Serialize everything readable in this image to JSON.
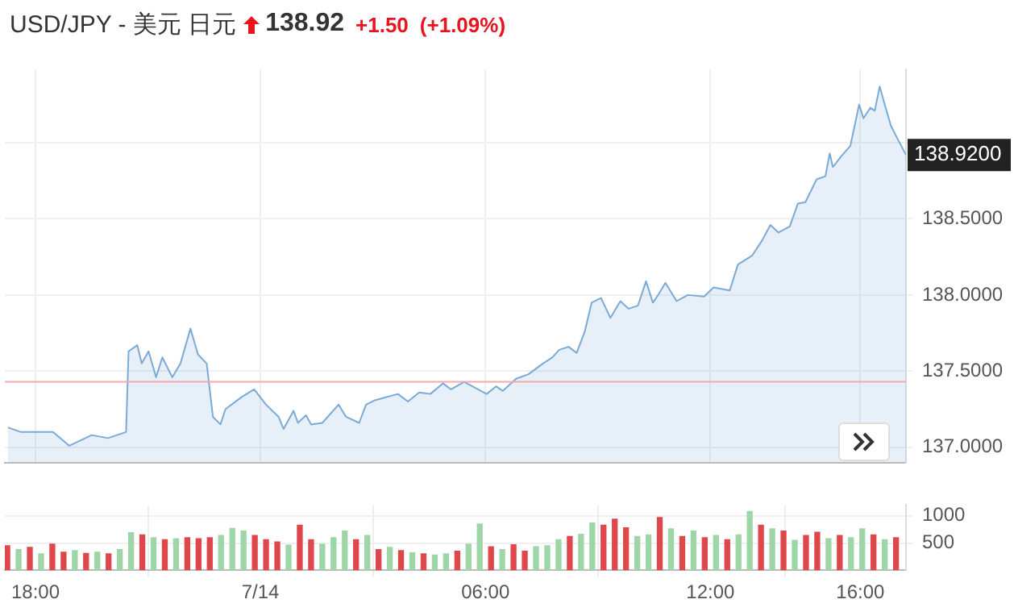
{
  "chart_data": [
    {
      "type": "area",
      "title": "USD/JPY - 美元 日元",
      "annotations": [
        "138.92",
        "+1.50",
        "(+1.09%)",
        {
          "text": "138.9200",
          "x": "--07-14T17:13",
          "y": 138.92
        }
      ],
      "xlim": [
        "--07-13T17:11",
        "--07-14T17:13"
      ],
      "xticks": [
        {
          "value": "--07-13T18:00",
          "label": null
        },
        {
          "value": "--07-14T00:00",
          "label": null
        },
        {
          "value": "--07-14T06:00",
          "label": null
        },
        {
          "value": "--07-14T12:00",
          "label": null
        },
        {
          "value": "--07-14T16:00",
          "label": null
        }
      ],
      "ylim": [
        136.9,
        139.48
      ],
      "yticks": [
        {
          "value": 137,
          "label": "137.0000"
        },
        {
          "value": 137.5,
          "label": "137.5000"
        },
        {
          "value": 138,
          "label": "138.0000"
        },
        {
          "value": 138.5,
          "label": "138.5000"
        },
        {
          "value": 139,
          "label": null
        }
      ],
      "grid": true,
      "legend": false,
      "tick_labels": "y",
      "ref_lines": [
        {
          "axis": "y",
          "value": 137.43,
          "color": "#f4a9a9"
        }
      ],
      "series": [
        {
          "color": "#7aaad6",
          "x": [
            "--07-13T17:16",
            "--07-13T17:37",
            "--07-13T18:28",
            "--07-13T18:54",
            "--07-13T19:30",
            "--07-13T19:56",
            "--07-13T20:25",
            "--07-13T20:29",
            "--07-13T20:43",
            "--07-13T20:50",
            "--07-13T21:01",
            "--07-13T21:13",
            "--07-13T21:23",
            "--07-13T21:39",
            "--07-13T21:52",
            "--07-13T22:08",
            "--07-13T22:20",
            "--07-13T22:34",
            "--07-13T22:44",
            "--07-13T22:56",
            "--07-13T23:04",
            "--07-13T23:30",
            "--07-13T23:50",
            "--07-14T00:09",
            "--07-14T00:29",
            "--07-14T00:37",
            "--07-14T00:53",
            "--07-14T01:00",
            "--07-14T01:13",
            "--07-14T01:21",
            "--07-14T01:39",
            "--07-14T02:05",
            "--07-14T02:17",
            "--07-14T02:38",
            "--07-14T02:49",
            "--07-14T03:04",
            "--07-14T03:40",
            "--07-14T03:56",
            "--07-14T04:14",
            "--07-14T04:32",
            "--07-14T04:52",
            "--07-14T05:05",
            "--07-14T05:26",
            "--07-14T06:02",
            "--07-14T06:17",
            "--07-14T06:28",
            "--07-14T06:49",
            "--07-14T07:09",
            "--07-14T07:32",
            "--07-14T07:47",
            "--07-14T07:58",
            "--07-14T08:13",
            "--07-14T08:26",
            "--07-14T08:39",
            "--07-14T08:50",
            "--07-14T09:05",
            "--07-14T09:20",
            "--07-14T09:36",
            "--07-14T09:49",
            "--07-14T10:04",
            "--07-14T10:17",
            "--07-14T10:28",
            "--07-14T10:38",
            "--07-14T10:48",
            "--07-14T11:06",
            "--07-14T11:24",
            "--07-14T11:50",
            "--07-14T12:05",
            "--07-14T12:31",
            "--07-14T12:44",
            "--07-14T13:07",
            "--07-14T13:23",
            "--07-14T13:36",
            "--07-14T13:49",
            "--07-14T14:07",
            "--07-14T14:20",
            "--07-14T14:32",
            "--07-14T14:50",
            "--07-14T15:04",
            "--07-14T15:11",
            "--07-14T15:16",
            "--07-14T15:29",
            "--07-14T15:44",
            "--07-14T15:58",
            "--07-14T16:05",
            "--07-14T16:16",
            "--07-14T16:23",
            "--07-14T16:31",
            "--07-14T16:39",
            "--07-14T16:49",
            "--07-14T16:59",
            "--07-14T17:13"
          ],
          "values": [
            137.13,
            137.1,
            137.1,
            137.01,
            137.08,
            137.06,
            137.1,
            137.63,
            137.67,
            137.55,
            137.63,
            137.46,
            137.59,
            137.46,
            137.55,
            137.78,
            137.61,
            137.55,
            137.2,
            137.15,
            137.25,
            137.33,
            137.38,
            137.28,
            137.2,
            137.12,
            137.24,
            137.16,
            137.21,
            137.15,
            137.16,
            137.28,
            137.2,
            137.16,
            137.28,
            137.31,
            137.35,
            137.3,
            137.36,
            137.35,
            137.42,
            137.38,
            137.43,
            137.35,
            137.4,
            137.37,
            137.45,
            137.48,
            137.55,
            137.59,
            137.64,
            137.66,
            137.62,
            137.76,
            137.95,
            137.98,
            137.85,
            137.96,
            137.91,
            137.93,
            138.09,
            137.95,
            138.01,
            138.08,
            137.96,
            138.0,
            137.99,
            138.05,
            138.03,
            138.2,
            138.26,
            138.36,
            138.46,
            138.41,
            138.45,
            138.6,
            138.61,
            138.76,
            138.78,
            138.93,
            138.84,
            138.91,
            138.98,
            139.25,
            139.16,
            139.23,
            139.21,
            139.37,
            139.25,
            139.11,
            139.03,
            138.92
          ]
        }
      ]
    },
    {
      "type": "bar",
      "xlim": [
        "--07-13T17:11",
        "--07-14T17:13"
      ],
      "xticks": [
        {
          "value": "--07-13T18:00",
          "label": "18:00"
        },
        {
          "value": "--07-14T00:00",
          "label": "7/14"
        },
        {
          "value": "--07-14T06:00",
          "label": "06:00"
        },
        {
          "value": "--07-14T12:00",
          "label": "12:00"
        },
        {
          "value": "--07-14T16:00",
          "label": "16:00"
        }
      ],
      "ylim": [
        0,
        1200
      ],
      "yticks": [
        500,
        1000
      ],
      "grid": true,
      "legend": false,
      "series": [
        {
          "x": [
            "--07-13T17:15",
            "--07-13T17:33",
            "--07-13T17:51",
            "--07-13T18:09",
            "--07-13T18:27",
            "--07-13T18:45",
            "--07-13T19:03",
            "--07-13T19:21",
            "--07-13T19:39",
            "--07-13T19:57",
            "--07-13T20:15",
            "--07-13T20:33",
            "--07-13T20:51",
            "--07-13T21:09",
            "--07-13T21:27",
            "--07-13T21:45",
            "--07-13T22:03",
            "--07-13T22:21",
            "--07-13T22:39",
            "--07-13T22:57",
            "--07-13T23:15",
            "--07-13T23:33",
            "--07-13T23:51",
            "--07-14T00:09",
            "--07-14T00:27",
            "--07-14T00:45",
            "--07-14T01:03",
            "--07-14T01:21",
            "--07-14T01:39",
            "--07-14T01:57",
            "--07-14T02:15",
            "--07-14T02:33",
            "--07-14T02:51",
            "--07-14T03:09",
            "--07-14T03:27",
            "--07-14T03:45",
            "--07-14T04:03",
            "--07-14T04:21",
            "--07-14T04:39",
            "--07-14T04:57",
            "--07-14T05:15",
            "--07-14T05:33",
            "--07-14T05:51",
            "--07-14T06:09",
            "--07-14T06:27",
            "--07-14T06:45",
            "--07-14T07:03",
            "--07-14T07:21",
            "--07-14T07:39",
            "--07-14T07:57",
            "--07-14T08:15",
            "--07-14T08:33",
            "--07-14T08:51",
            "--07-14T09:09",
            "--07-14T09:27",
            "--07-14T09:45",
            "--07-14T10:03",
            "--07-14T10:21",
            "--07-14T10:39",
            "--07-14T10:57",
            "--07-14T11:15",
            "--07-14T11:33",
            "--07-14T11:51",
            "--07-14T12:09",
            "--07-14T12:27",
            "--07-14T12:45",
            "--07-14T13:03",
            "--07-14T13:21",
            "--07-14T13:39",
            "--07-14T13:57",
            "--07-14T14:15",
            "--07-14T14:33",
            "--07-14T14:51",
            "--07-14T15:09",
            "--07-14T15:27",
            "--07-14T15:45",
            "--07-14T16:03",
            "--07-14T16:21",
            "--07-14T16:39",
            "--07-14T16:57"
          ],
          "values": [
            450,
            380,
            420,
            300,
            480,
            330,
            360,
            310,
            330,
            300,
            380,
            690,
            650,
            600,
            560,
            580,
            600,
            580,
            600,
            640,
            770,
            720,
            640,
            560,
            520,
            460,
            830,
            560,
            480,
            600,
            720,
            560,
            640,
            380,
            420,
            360,
            320,
            300,
            280,
            300,
            350,
            480,
            850,
            430,
            380,
            470,
            350,
            430,
            450,
            560,
            620,
            660,
            870,
            830,
            940,
            780,
            620,
            650,
            970,
            760,
            620,
            720,
            600,
            640,
            560,
            650,
            1080,
            830,
            760,
            720,
            550,
            640,
            700,
            580,
            640,
            600,
            760,
            650,
            560,
            600
          ],
          "colors": [
            "#e0474c",
            "#9fd6a8",
            "#e0474c",
            "#9fd6a8",
            "#e0474c",
            "#e0474c",
            "#9fd6a8",
            "#e0474c",
            "#9fd6a8",
            "#e0474c",
            "#9fd6a8",
            "#9fd6a8",
            "#e0474c",
            "#9fd6a8",
            "#e0474c",
            "#9fd6a8",
            "#e0474c",
            "#e0474c",
            "#e0474c",
            "#9fd6a8",
            "#9fd6a8",
            "#9fd6a8",
            "#e0474c",
            "#e0474c",
            "#e0474c",
            "#9fd6a8",
            "#e0474c",
            "#e0474c",
            "#9fd6a8",
            "#9fd6a8",
            "#9fd6a8",
            "#e0474c",
            "#9fd6a8",
            "#e0474c",
            "#9fd6a8",
            "#e0474c",
            "#9fd6a8",
            "#e0474c",
            "#9fd6a8",
            "#9fd6a8",
            "#e0474c",
            "#9fd6a8",
            "#9fd6a8",
            "#e0474c",
            "#9fd6a8",
            "#e0474c",
            "#e0474c",
            "#9fd6a8",
            "#9fd6a8",
            "#9fd6a8",
            "#e0474c",
            "#9fd6a8",
            "#9fd6a8",
            "#e0474c",
            "#e0474c",
            "#e0474c",
            "#9fd6a8",
            "#9fd6a8",
            "#e0474c",
            "#9fd6a8",
            "#e0474c",
            "#9fd6a8",
            "#e0474c",
            "#9fd6a8",
            "#e0474c",
            "#9fd6a8",
            "#9fd6a8",
            "#e0474c",
            "#9fd6a8",
            "#e0474c",
            "#9fd6a8",
            "#e0474c",
            "#e0474c",
            "#9fd6a8",
            "#e0474c",
            "#9fd6a8",
            "#9fd6a8",
            "#e0474c",
            "#9fd6a8",
            "#e0474c"
          ]
        }
      ]
    }
  ]
}
